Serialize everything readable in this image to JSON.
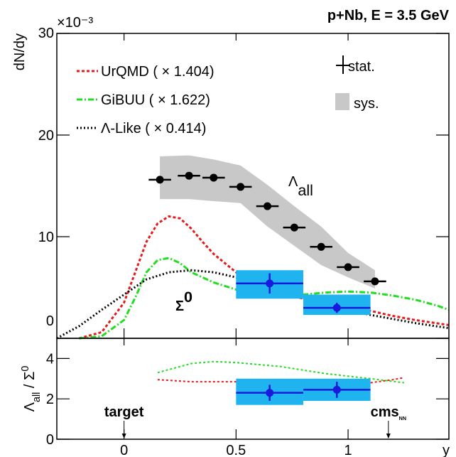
{
  "chart_data": [
    {
      "type": "line",
      "title": "p+Nb, E = 3.5 GeV",
      "ylabel": "dN/dy",
      "y_multiplier": "×10⁻³",
      "xlim": [
        -0.3,
        1.45
      ],
      "ylim": [
        0,
        30
      ],
      "yticks": [
        0,
        10,
        20,
        30
      ],
      "series": [
        {
          "name": "UrQMD ( × 1.404)",
          "color": "#e41a1c",
          "dash": "4,3",
          "x": [
            -0.2,
            -0.1,
            0,
            0.05,
            0.1,
            0.15,
            0.2,
            0.25,
            0.3,
            0.35,
            0.4,
            0.5,
            0.6,
            0.7,
            0.8,
            0.9,
            1.0,
            1.1,
            1.2,
            1.3,
            1.45
          ],
          "values": [
            0,
            0.6,
            3.5,
            6.5,
            9.5,
            11.3,
            12.0,
            11.8,
            10.8,
            9.5,
            8.3,
            6.5,
            5.3,
            4.4,
            3.9,
            3.5,
            3.1,
            2.7,
            2.2,
            1.8,
            1.3
          ]
        },
        {
          "name": "GiBUU ( × 1.622)",
          "color": "#22dd22",
          "dash": "8,3,2,3",
          "x": [
            -0.2,
            -0.1,
            0,
            0.05,
            0.1,
            0.15,
            0.2,
            0.25,
            0.3,
            0.4,
            0.5,
            0.6,
            0.7,
            0.8,
            0.9,
            1.0,
            1.1,
            1.2,
            1.3,
            1.4,
            1.45
          ],
          "values": [
            0,
            0.2,
            1.8,
            4,
            6.5,
            7.7,
            7.9,
            7.4,
            6.5,
            5.5,
            4.8,
            4.5,
            4.3,
            4.3,
            4.5,
            4.6,
            4.5,
            4.2,
            3.8,
            3.2,
            2.8
          ]
        },
        {
          "name": "Λ-Like ( × 0.414)",
          "color": "#000000",
          "dash": "2,3",
          "x": [
            -0.3,
            -0.2,
            -0.1,
            0,
            0.1,
            0.2,
            0.3,
            0.4,
            0.5,
            0.6,
            0.7,
            0.8,
            0.9,
            1.0,
            1.1,
            1.2,
            1.3,
            1.45
          ],
          "values": [
            0,
            1.2,
            2.8,
            4.3,
            5.8,
            6.5,
            6.7,
            6.5,
            6.0,
            5.4,
            4.7,
            4.0,
            3.4,
            2.8,
            2.3,
            1.9,
            1.5,
            1.0
          ]
        }
      ],
      "measurements": [
        {
          "label": [
            {
              "text": "Λ"
            },
            {
              "text": "all",
              "script": "sub"
            }
          ],
          "color": "#000000",
          "sys_color": "#c8c8c8",
          "sys_style": "band",
          "x": [
            0.16,
            0.29,
            0.4,
            0.52,
            0.64,
            0.76,
            0.88,
            1.0,
            1.12
          ],
          "values": [
            15.6,
            16.0,
            15.8,
            14.9,
            13.0,
            10.9,
            9.0,
            7.0,
            5.6
          ],
          "xerr": [
            0.05,
            0.05,
            0.05,
            0.05,
            0.05,
            0.05,
            0.05,
            0.05,
            0.05
          ],
          "sys_low": [
            13.7,
            13.7,
            13.5,
            13.3,
            11.0,
            9.1,
            7.2,
            6.0,
            4.9
          ],
          "sys_high": [
            17.9,
            18.0,
            17.6,
            17.0,
            15.1,
            13.0,
            11.0,
            8.4,
            6.7
          ]
        },
        {
          "label": [
            {
              "text": "Σ"
            },
            {
              "text": "0",
              "script": "super"
            }
          ],
          "color": "#1a1adc",
          "sys_color": "#1fb4f0",
          "sys_style": "box",
          "x": [
            0.65,
            0.95
          ],
          "values": [
            5.4,
            3.0
          ],
          "xerr": [
            0.15,
            0.15
          ],
          "yerr": [
            1.0,
            0.5
          ],
          "sys_low": [
            3.9,
            2.3
          ],
          "sys_high": [
            6.7,
            4.3
          ]
        }
      ],
      "legend_stat": "stat.",
      "legend_sys": "sys."
    },
    {
      "type": "line",
      "ylabel": [
        {
          "text": "Λ"
        },
        {
          "text": "all",
          "script": "sub"
        },
        {
          "text": " / Σ"
        },
        {
          "text": "0",
          "script": "super"
        }
      ],
      "xlabel": "y",
      "xlim": [
        -0.3,
        1.45
      ],
      "ylim": [
        0,
        5
      ],
      "xticks": [
        0,
        0.5,
        1
      ],
      "yticks": [
        0,
        2,
        4
      ],
      "series": [
        {
          "color": "#e41a1c",
          "dash": "3,3",
          "x": [
            0.15,
            0.3,
            0.5,
            0.7,
            0.9,
            1.0,
            1.1,
            1.2,
            1.25
          ],
          "values": [
            2.95,
            2.85,
            2.85,
            2.9,
            2.9,
            2.85,
            2.8,
            2.95,
            3.05
          ]
        },
        {
          "color": "#22dd22",
          "dash": "3,3",
          "x": [
            0.15,
            0.3,
            0.4,
            0.5,
            0.7,
            0.9,
            1.1,
            1.25
          ],
          "values": [
            3.3,
            3.75,
            3.85,
            3.8,
            3.6,
            3.25,
            3.0,
            2.8
          ]
        }
      ],
      "measurements": [
        {
          "color": "#1a1adc",
          "sys_color": "#1fb4f0",
          "sys_style": "box",
          "x": [
            0.65,
            0.95
          ],
          "values": [
            2.3,
            2.45
          ],
          "xerr": [
            0.15,
            0.15
          ],
          "yerr": [
            0.4,
            0.4
          ],
          "sys_low": [
            1.7,
            1.9
          ],
          "sys_high": [
            3.0,
            3.0
          ]
        }
      ],
      "annotations": [
        {
          "x": 0,
          "label": [
            {
              "text": "target"
            }
          ]
        },
        {
          "x": 1.18,
          "label": [
            {
              "text": "cms"
            },
            {
              "text": "NN",
              "script": "sub"
            }
          ]
        }
      ]
    }
  ]
}
